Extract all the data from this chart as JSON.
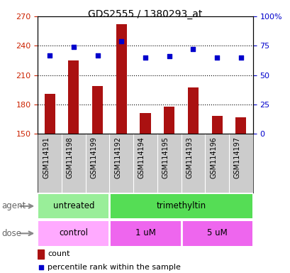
{
  "title": "GDS2555 / 1380293_at",
  "samples": [
    "GSM114191",
    "GSM114198",
    "GSM114199",
    "GSM114192",
    "GSM114194",
    "GSM114195",
    "GSM114193",
    "GSM114196",
    "GSM114197"
  ],
  "counts": [
    191,
    225,
    199,
    262,
    171,
    178,
    197,
    168,
    167
  ],
  "percentile_ranks": [
    67,
    74,
    67,
    79,
    65,
    66,
    72,
    65,
    65
  ],
  "ylim_left": [
    150,
    270
  ],
  "ylim_right": [
    0,
    100
  ],
  "yticks_left": [
    150,
    180,
    210,
    240,
    270
  ],
  "yticks_right": [
    0,
    25,
    50,
    75,
    100
  ],
  "bar_color": "#AA1111",
  "dot_color": "#0000CC",
  "bar_width": 0.45,
  "agent_labels": [
    {
      "text": "untreated",
      "start": 0,
      "end": 3,
      "color": "#99EE99"
    },
    {
      "text": "trimethyltin",
      "start": 3,
      "end": 9,
      "color": "#55DD55"
    }
  ],
  "dose_labels": [
    {
      "text": "control",
      "start": 0,
      "end": 3,
      "color": "#FFAAFF"
    },
    {
      "text": "1 uM",
      "start": 3,
      "end": 6,
      "color": "#EE66EE"
    },
    {
      "text": "5 uM",
      "start": 6,
      "end": 9,
      "color": "#EE66EE"
    }
  ],
  "xlabel_agent": "agent",
  "xlabel_dose": "dose",
  "legend_count_label": "count",
  "legend_pct_label": "percentile rank within the sample",
  "background_color": "#FFFFFF",
  "plot_bg_color": "#FFFFFF",
  "tick_label_color_left": "#CC2200",
  "tick_label_color_right": "#0000CC",
  "sample_bg_color": "#CCCCCC"
}
